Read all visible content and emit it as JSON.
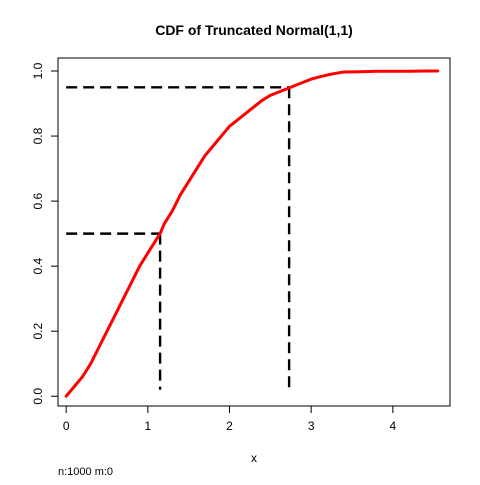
{
  "chart_data": {
    "type": "line",
    "title": "CDF of Truncated Normal(1,1)",
    "subtitle": "",
    "xlabel": "x",
    "ylabel": "",
    "xlim": [
      -0.1,
      4.7
    ],
    "ylim": [
      -0.03,
      1.04
    ],
    "x_ticks": [
      0,
      1,
      2,
      3,
      4
    ],
    "y_ticks": [
      0.0,
      0.2,
      0.4,
      0.6,
      0.8,
      1.0
    ],
    "x_tick_labels": [
      "0",
      "1",
      "2",
      "3",
      "4"
    ],
    "y_tick_labels": [
      "0.0",
      "0.2",
      "0.4",
      "0.6",
      "0.8",
      "1.0"
    ],
    "grid": false,
    "legend": "none",
    "series": [
      {
        "color": "#ff0000",
        "style": "solid",
        "x": [
          0.0,
          0.1,
          0.2,
          0.3,
          0.4,
          0.5,
          0.6,
          0.7,
          0.8,
          0.9,
          1.0,
          1.1,
          1.15,
          1.2,
          1.3,
          1.4,
          1.5,
          1.6,
          1.7,
          1.8,
          1.9,
          2.0,
          2.1,
          2.2,
          2.3,
          2.4,
          2.5,
          2.6,
          2.7,
          2.75,
          2.8,
          2.9,
          3.0,
          3.1,
          3.2,
          3.3,
          3.4,
          3.6,
          3.8,
          4.0,
          4.2,
          4.4,
          4.55
        ],
        "y": [
          0.0,
          0.03,
          0.06,
          0.1,
          0.15,
          0.2,
          0.25,
          0.3,
          0.35,
          0.4,
          0.44,
          0.48,
          0.5,
          0.53,
          0.57,
          0.62,
          0.66,
          0.7,
          0.74,
          0.77,
          0.8,
          0.83,
          0.85,
          0.87,
          0.89,
          0.91,
          0.925,
          0.935,
          0.945,
          0.95,
          0.955,
          0.965,
          0.975,
          0.982,
          0.988,
          0.993,
          0.997,
          0.998,
          0.999,
          0.999,
          0.9995,
          1.0,
          1.0
        ]
      }
    ],
    "reference_lines": [
      {
        "x": [
          0,
          1.15
        ],
        "y": [
          0.5,
          0.5
        ],
        "style": "dashed",
        "color": "#000000"
      },
      {
        "x": [
          1.15,
          1.15
        ],
        "y": [
          0.5,
          0.02
        ],
        "style": "dashed",
        "color": "#000000"
      },
      {
        "x": [
          0,
          2.73
        ],
        "y": [
          0.95,
          0.95
        ],
        "style": "dashed",
        "color": "#000000"
      },
      {
        "x": [
          2.73,
          2.73
        ],
        "y": [
          0.95,
          0.02
        ],
        "style": "dashed",
        "color": "#000000"
      }
    ],
    "annotation": "n:1000 m:0"
  }
}
